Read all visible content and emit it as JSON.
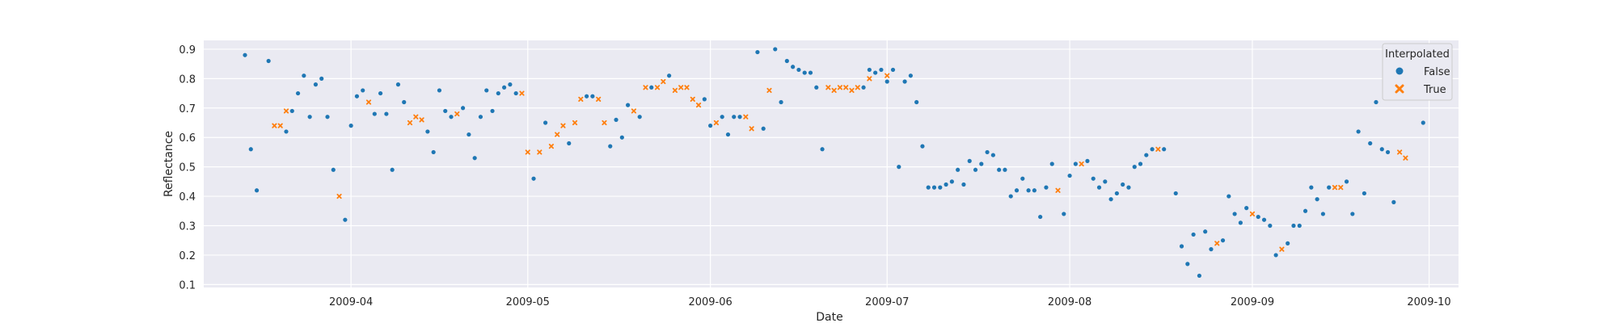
{
  "chart_data": {
    "type": "scatter",
    "xlabel": "Date",
    "ylabel": "Reflectance",
    "xlim": [
      "2009-03-07",
      "2009-10-06"
    ],
    "ylim": [
      0.09,
      0.93
    ],
    "x_ticks": [
      "2009-04-01",
      "2009-05-01",
      "2009-06-01",
      "2009-07-01",
      "2009-08-01",
      "2009-09-01",
      "2009-10-01"
    ],
    "x_tick_labels": [
      "2009-04",
      "2009-05",
      "2009-06",
      "2009-07",
      "2009-08",
      "2009-09",
      "2009-10"
    ],
    "y_ticks": [
      0.1,
      0.2,
      0.3,
      0.4,
      0.5,
      0.6,
      0.7,
      0.8,
      0.9
    ],
    "y_tick_labels": [
      "0.1",
      "0.2",
      "0.3",
      "0.4",
      "0.5",
      "0.6",
      "0.7",
      "0.8",
      "0.9"
    ],
    "grid": true,
    "background": "#eaeaf2",
    "legend": {
      "title": "Interpolated",
      "position": "top-right"
    },
    "series": [
      {
        "name": "False",
        "marker": "circle",
        "color": "#1f77b4",
        "points": [
          [
            "2009-03-14",
            0.88
          ],
          [
            "2009-03-15",
            0.56
          ],
          [
            "2009-03-16",
            0.42
          ],
          [
            "2009-03-18",
            0.86
          ],
          [
            "2009-03-21",
            0.62
          ],
          [
            "2009-03-22",
            0.69
          ],
          [
            "2009-03-23",
            0.75
          ],
          [
            "2009-03-24",
            0.81
          ],
          [
            "2009-03-25",
            0.67
          ],
          [
            "2009-03-26",
            0.78
          ],
          [
            "2009-03-27",
            0.8
          ],
          [
            "2009-03-28",
            0.67
          ],
          [
            "2009-03-29",
            0.49
          ],
          [
            "2009-03-31",
            0.32
          ],
          [
            "2009-04-01",
            0.64
          ],
          [
            "2009-04-02",
            0.74
          ],
          [
            "2009-04-03",
            0.76
          ],
          [
            "2009-04-05",
            0.68
          ],
          [
            "2009-04-06",
            0.75
          ],
          [
            "2009-04-07",
            0.68
          ],
          [
            "2009-04-08",
            0.49
          ],
          [
            "2009-04-09",
            0.78
          ],
          [
            "2009-04-10",
            0.72
          ],
          [
            "2009-04-14",
            0.62
          ],
          [
            "2009-04-15",
            0.55
          ],
          [
            "2009-04-16",
            0.76
          ],
          [
            "2009-04-17",
            0.69
          ],
          [
            "2009-04-18",
            0.67
          ],
          [
            "2009-04-20",
            0.7
          ],
          [
            "2009-04-21",
            0.61
          ],
          [
            "2009-04-22",
            0.53
          ],
          [
            "2009-04-23",
            0.67
          ],
          [
            "2009-04-24",
            0.76
          ],
          [
            "2009-04-25",
            0.69
          ],
          [
            "2009-04-26",
            0.75
          ],
          [
            "2009-04-27",
            0.77
          ],
          [
            "2009-04-28",
            0.78
          ],
          [
            "2009-04-29",
            0.75
          ],
          [
            "2009-05-02",
            0.46
          ],
          [
            "2009-05-04",
            0.65
          ],
          [
            "2009-05-08",
            0.58
          ],
          [
            "2009-05-11",
            0.74
          ],
          [
            "2009-05-12",
            0.74
          ],
          [
            "2009-05-15",
            0.57
          ],
          [
            "2009-05-16",
            0.66
          ],
          [
            "2009-05-17",
            0.6
          ],
          [
            "2009-05-18",
            0.71
          ],
          [
            "2009-05-20",
            0.67
          ],
          [
            "2009-05-22",
            0.77
          ],
          [
            "2009-05-25",
            0.81
          ],
          [
            "2009-05-31",
            0.73
          ],
          [
            "2009-06-01",
            0.64
          ],
          [
            "2009-06-03",
            0.67
          ],
          [
            "2009-06-04",
            0.61
          ],
          [
            "2009-06-06",
            0.67
          ],
          [
            "2009-06-05",
            0.67
          ],
          [
            "2009-06-10",
            0.63
          ],
          [
            "2009-06-09",
            0.89
          ],
          [
            "2009-06-12",
            0.9
          ],
          [
            "2009-06-13",
            0.72
          ],
          [
            "2009-06-14",
            0.86
          ],
          [
            "2009-06-15",
            0.84
          ],
          [
            "2009-06-16",
            0.83
          ],
          [
            "2009-06-17",
            0.82
          ],
          [
            "2009-06-18",
            0.82
          ],
          [
            "2009-06-19",
            0.77
          ],
          [
            "2009-06-20",
            0.56
          ],
          [
            "2009-06-27",
            0.77
          ],
          [
            "2009-06-28",
            0.83
          ],
          [
            "2009-06-29",
            0.82
          ],
          [
            "2009-06-30",
            0.83
          ],
          [
            "2009-07-01",
            0.79
          ],
          [
            "2009-07-02",
            0.83
          ],
          [
            "2009-07-03",
            0.5
          ],
          [
            "2009-07-04",
            0.79
          ],
          [
            "2009-07-05",
            0.81
          ],
          [
            "2009-07-06",
            0.72
          ],
          [
            "2009-07-07",
            0.57
          ],
          [
            "2009-07-08",
            0.43
          ],
          [
            "2009-07-09",
            0.43
          ],
          [
            "2009-07-10",
            0.43
          ],
          [
            "2009-07-11",
            0.44
          ],
          [
            "2009-07-12",
            0.45
          ],
          [
            "2009-07-13",
            0.49
          ],
          [
            "2009-07-14",
            0.44
          ],
          [
            "2009-07-15",
            0.52
          ],
          [
            "2009-07-16",
            0.49
          ],
          [
            "2009-07-17",
            0.51
          ],
          [
            "2009-07-18",
            0.55
          ],
          [
            "2009-07-19",
            0.54
          ],
          [
            "2009-07-20",
            0.49
          ],
          [
            "2009-07-21",
            0.49
          ],
          [
            "2009-07-22",
            0.4
          ],
          [
            "2009-07-23",
            0.42
          ],
          [
            "2009-07-24",
            0.46
          ],
          [
            "2009-07-25",
            0.42
          ],
          [
            "2009-07-26",
            0.42
          ],
          [
            "2009-07-27",
            0.33
          ],
          [
            "2009-07-28",
            0.43
          ],
          [
            "2009-07-29",
            0.51
          ],
          [
            "2009-07-31",
            0.34
          ],
          [
            "2009-08-01",
            0.47
          ],
          [
            "2009-08-02",
            0.51
          ],
          [
            "2009-08-04",
            0.52
          ],
          [
            "2009-08-05",
            0.46
          ],
          [
            "2009-08-06",
            0.43
          ],
          [
            "2009-08-07",
            0.45
          ],
          [
            "2009-08-08",
            0.39
          ],
          [
            "2009-08-09",
            0.41
          ],
          [
            "2009-08-10",
            0.44
          ],
          [
            "2009-08-11",
            0.43
          ],
          [
            "2009-08-12",
            0.5
          ],
          [
            "2009-08-13",
            0.51
          ],
          [
            "2009-08-14",
            0.54
          ],
          [
            "2009-08-15",
            0.56
          ],
          [
            "2009-08-17",
            0.56
          ],
          [
            "2009-08-19",
            0.41
          ],
          [
            "2009-08-20",
            0.23
          ],
          [
            "2009-08-21",
            0.17
          ],
          [
            "2009-08-22",
            0.27
          ],
          [
            "2009-08-23",
            0.13
          ],
          [
            "2009-08-24",
            0.28
          ],
          [
            "2009-08-25",
            0.22
          ],
          [
            "2009-08-27",
            0.25
          ],
          [
            "2009-08-28",
            0.4
          ],
          [
            "2009-08-29",
            0.34
          ],
          [
            "2009-08-30",
            0.31
          ],
          [
            "2009-08-31",
            0.36
          ],
          [
            "2009-09-02",
            0.33
          ],
          [
            "2009-09-03",
            0.32
          ],
          [
            "2009-09-04",
            0.3
          ],
          [
            "2009-09-05",
            0.2
          ],
          [
            "2009-09-07",
            0.24
          ],
          [
            "2009-09-08",
            0.3
          ],
          [
            "2009-09-09",
            0.3
          ],
          [
            "2009-09-10",
            0.35
          ],
          [
            "2009-09-11",
            0.43
          ],
          [
            "2009-09-12",
            0.39
          ],
          [
            "2009-09-13",
            0.34
          ],
          [
            "2009-09-14",
            0.43
          ],
          [
            "2009-09-17",
            0.45
          ],
          [
            "2009-09-18",
            0.34
          ],
          [
            "2009-09-19",
            0.62
          ],
          [
            "2009-09-20",
            0.41
          ],
          [
            "2009-09-21",
            0.58
          ],
          [
            "2009-09-22",
            0.72
          ],
          [
            "2009-09-23",
            0.56
          ],
          [
            "2009-09-24",
            0.55
          ],
          [
            "2009-09-25",
            0.38
          ],
          [
            "2009-09-30",
            0.65
          ]
        ]
      },
      {
        "name": "True",
        "marker": "x",
        "color": "#ff7f0e",
        "points": [
          [
            "2009-03-19",
            0.64
          ],
          [
            "2009-03-20",
            0.64
          ],
          [
            "2009-03-21",
            0.69
          ],
          [
            "2009-03-30",
            0.4
          ],
          [
            "2009-04-04",
            0.72
          ],
          [
            "2009-04-11",
            0.65
          ],
          [
            "2009-04-12",
            0.67
          ],
          [
            "2009-04-13",
            0.66
          ],
          [
            "2009-04-19",
            0.68
          ],
          [
            "2009-04-30",
            0.75
          ],
          [
            "2009-05-01",
            0.55
          ],
          [
            "2009-05-03",
            0.55
          ],
          [
            "2009-05-05",
            0.57
          ],
          [
            "2009-05-06",
            0.61
          ],
          [
            "2009-05-07",
            0.64
          ],
          [
            "2009-05-09",
            0.65
          ],
          [
            "2009-05-10",
            0.73
          ],
          [
            "2009-05-13",
            0.73
          ],
          [
            "2009-05-14",
            0.65
          ],
          [
            "2009-05-19",
            0.69
          ],
          [
            "2009-05-21",
            0.77
          ],
          [
            "2009-05-23",
            0.77
          ],
          [
            "2009-05-24",
            0.79
          ],
          [
            "2009-05-26",
            0.76
          ],
          [
            "2009-05-27",
            0.77
          ],
          [
            "2009-05-28",
            0.77
          ],
          [
            "2009-05-29",
            0.73
          ],
          [
            "2009-05-30",
            0.71
          ],
          [
            "2009-06-02",
            0.65
          ],
          [
            "2009-06-07",
            0.67
          ],
          [
            "2009-06-08",
            0.63
          ],
          [
            "2009-06-11",
            0.76
          ],
          [
            "2009-06-21",
            0.77
          ],
          [
            "2009-06-22",
            0.76
          ],
          [
            "2009-06-23",
            0.77
          ],
          [
            "2009-06-24",
            0.77
          ],
          [
            "2009-06-25",
            0.76
          ],
          [
            "2009-06-26",
            0.77
          ],
          [
            "2009-06-28",
            0.8
          ],
          [
            "2009-07-01",
            0.81
          ],
          [
            "2009-07-30",
            0.42
          ],
          [
            "2009-08-03",
            0.51
          ],
          [
            "2009-08-16",
            0.56
          ],
          [
            "2009-08-26",
            0.24
          ],
          [
            "2009-09-01",
            0.34
          ],
          [
            "2009-09-06",
            0.22
          ],
          [
            "2009-09-15",
            0.43
          ],
          [
            "2009-09-16",
            0.43
          ],
          [
            "2009-09-26",
            0.55
          ],
          [
            "2009-09-27",
            0.53
          ]
        ]
      }
    ]
  }
}
